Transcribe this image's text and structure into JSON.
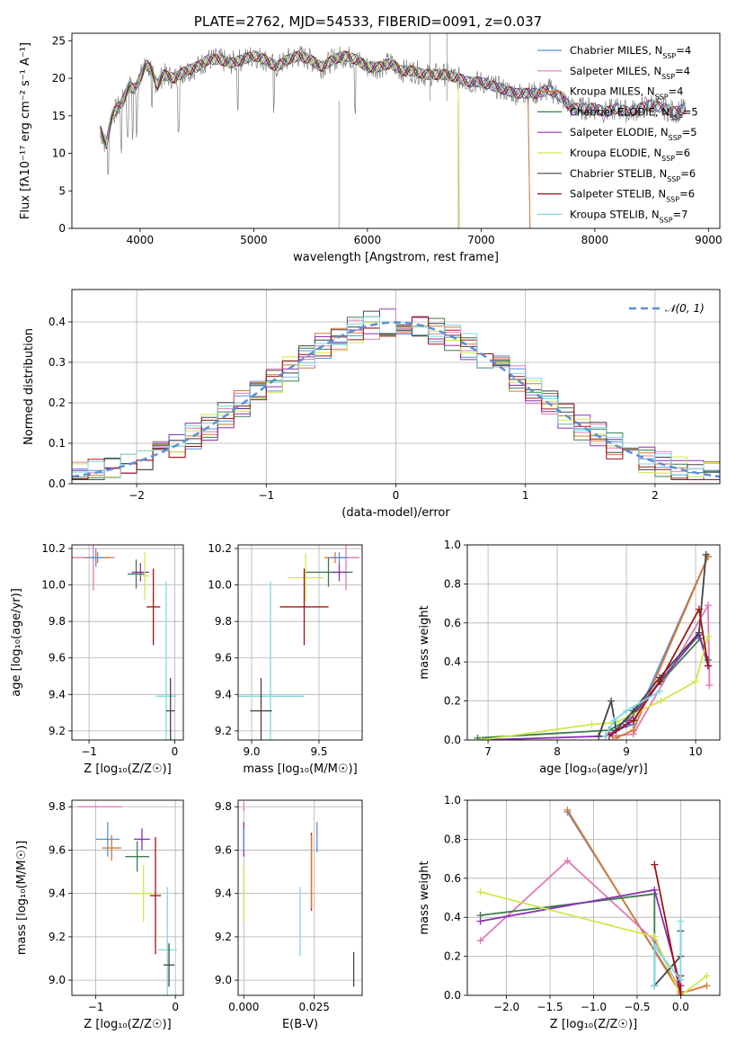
{
  "figure_title": "PLATE=2762, MJD=54533, FIBERID=0091, z=0.037",
  "colors": {
    "chabrier_miles": "#5b8fd6",
    "salpeter_miles": "#e07ab8",
    "kroupa_miles": "#d9782d",
    "chabrier_elodie": "#3b7d4a",
    "salpeter_elodie": "#8b2fb5",
    "kroupa_elodie": "#cfe84a",
    "chabrier_stelib": "#444444",
    "salpeter_stelib": "#a01414",
    "kroupa_stelib": "#7fd9df",
    "gaussian": "#5b8fd6"
  },
  "chart_data": [
    {
      "id": "spectrum",
      "type": "line",
      "title": "PLATE=2762, MJD=54533, FIBERID=0091, z=0.037",
      "xlabel": "wavelength [Angstrom, rest frame]",
      "ylabel": "Flux [fλ10⁻¹⁷ erg cm⁻² s⁻¹ A⁻¹]",
      "xlim": [
        3400,
        9100
      ],
      "ylim": [
        0,
        26
      ],
      "xticks": [
        4000,
        5000,
        6000,
        7000,
        8000,
        9000
      ],
      "yticks": [
        0,
        5,
        10,
        15,
        20,
        25
      ],
      "grid": false,
      "legend_position": "top-right",
      "legend": [
        "Chabrier MILES, N_SSP=4",
        "Salpeter MILES, N_SSP=4",
        "Kroupa MILES, N_SSP=4",
        "Chabrier ELODIE, N_SSP=5",
        "Salpeter ELODIE, N_SSP=5",
        "Kroupa ELODIE, N_SSP=6",
        "Chabrier STELIB, N_SSP=6",
        "Salpeter STELIB, N_SSP=6",
        "Kroupa STELIB, N_SSP=7"
      ],
      "observed_spectrum": {
        "x": [
          3650,
          3700,
          3750,
          3800,
          3850,
          3900,
          3950,
          4000,
          4050,
          4100,
          4150,
          4200,
          4300,
          4400,
          4500,
          4600,
          4700,
          4800,
          4900,
          5000,
          5100,
          5200,
          5300,
          5400,
          5500,
          5600,
          5700,
          5800,
          5900,
          6000,
          6100,
          6200,
          6300,
          6400,
          6500,
          6600,
          6700,
          6800,
          6900,
          7000,
          7100,
          7200,
          7300,
          7400,
          7500,
          7600,
          7700,
          7800,
          7900,
          8000,
          8100,
          8200,
          8300,
          8400,
          8500,
          8600,
          8700,
          8800
        ],
        "y": [
          13,
          11,
          15,
          16,
          17,
          19,
          18.5,
          20,
          22,
          21,
          19,
          20.5,
          20,
          21,
          21.5,
          22.5,
          22.5,
          22,
          22.5,
          23,
          22.5,
          21.5,
          22.5,
          23,
          22.5,
          21.5,
          22.5,
          23,
          22.5,
          21.5,
          21.5,
          22,
          21,
          21,
          20.5,
          20.5,
          20.5,
          20,
          19.5,
          19.5,
          19,
          18.5,
          18,
          18,
          18,
          18.5,
          17.5,
          16,
          16,
          16,
          15.5,
          16,
          15.5,
          16,
          16.5,
          16,
          15.5,
          16
        ]
      },
      "model_cutoff_wavelength": {
        "Kroupa MILES": 7420,
        "Chabrier MILES": 7420,
        "Kroupa ELODIE": 6800
      }
    },
    {
      "id": "residuals",
      "type": "line",
      "xlabel": "(data-model)/error",
      "ylabel": "Normed distribution",
      "xlim": [
        -2.5,
        2.5
      ],
      "ylim": [
        0,
        0.48
      ],
      "xticks": [
        -2,
        -1,
        0,
        1,
        2
      ],
      "yticks": [
        0.0,
        0.1,
        0.2,
        0.3,
        0.4
      ],
      "grid": true,
      "legend_position": "top-right",
      "legend": [
        "𝒩(0, 1)"
      ],
      "gaussian": {
        "mean": 0,
        "sigma": 1
      }
    },
    {
      "id": "age_vs_Z",
      "type": "scatter",
      "xlabel": "Z [log₁₀(Z/Z☉)]",
      "ylabel": "age  [log₁₀(age/yr)]",
      "xlim": [
        -1.2,
        0.1
      ],
      "ylim": [
        9.15,
        10.22
      ],
      "xticks": [
        -1,
        0
      ],
      "yticks": [
        9.2,
        9.4,
        9.6,
        9.8,
        10.0,
        10.2
      ],
      "grid": true,
      "points": [
        {
          "model": "Salpeter MILES",
          "x": -0.95,
          "y": 10.15,
          "xerr": 0.25,
          "yerr": 0.18
        },
        {
          "model": "Kroupa MILES",
          "x": -0.9,
          "y": 10.15,
          "xerr": 0.15,
          "yerr": 0.03
        },
        {
          "model": "Chabrier MILES",
          "x": -0.92,
          "y": 10.15,
          "xerr": 0.1,
          "yerr": 0.05
        },
        {
          "model": "Chabrier ELODIE",
          "x": -0.45,
          "y": 10.06,
          "xerr": 0.1,
          "yerr": 0.08
        },
        {
          "model": "Salpeter ELODIE",
          "x": -0.4,
          "y": 10.07,
          "xerr": 0.1,
          "yerr": 0.05
        },
        {
          "model": "Kroupa ELODIE",
          "x": -0.35,
          "y": 10.05,
          "xerr": 0.05,
          "yerr": 0.13
        },
        {
          "model": "Salpeter STELIB",
          "x": -0.25,
          "y": 9.88,
          "xerr": 0.08,
          "yerr": 0.21
        },
        {
          "model": "Kroupa STELIB",
          "x": -0.1,
          "y": 9.39,
          "xerr": 0.12,
          "yerr": 0.63
        },
        {
          "model": "Chabrier STELIB",
          "x": -0.05,
          "y": 9.31,
          "xerr": 0.05,
          "yerr": 0.18
        }
      ]
    },
    {
      "id": "age_vs_mass",
      "type": "scatter",
      "xlabel": "mass [log₁₀(M/M☉)]",
      "ylabel": "",
      "xlim": [
        8.9,
        9.82
      ],
      "ylim": [
        9.15,
        10.22
      ],
      "xticks": [
        9.0,
        9.5
      ],
      "yticks": [
        9.2,
        9.4,
        9.6,
        9.8,
        10.0,
        10.2
      ],
      "grid": true,
      "points": [
        {
          "model": "Salpeter MILES",
          "x": 9.7,
          "y": 10.15,
          "xerr": 0.1,
          "yerr": 0.18
        },
        {
          "model": "Kroupa MILES",
          "x": 9.62,
          "y": 10.15,
          "xerr": 0.08,
          "yerr": 0.03
        },
        {
          "model": "Chabrier MILES",
          "x": 9.65,
          "y": 10.15,
          "xerr": 0.07,
          "yerr": 0.03
        },
        {
          "model": "Chabrier ELODIE",
          "x": 9.57,
          "y": 10.07,
          "xerr": 0.18,
          "yerr": 0.08
        },
        {
          "model": "Salpeter ELODIE",
          "x": 9.65,
          "y": 10.07,
          "xerr": 0.05,
          "yerr": 0.05
        },
        {
          "model": "Kroupa ELODIE",
          "x": 9.4,
          "y": 10.04,
          "xerr": 0.13,
          "yerr": 0.13
        },
        {
          "model": "Salpeter STELIB",
          "x": 9.39,
          "y": 9.88,
          "xerr": 0.18,
          "yerr": 0.21
        },
        {
          "model": "Kroupa STELIB",
          "x": 9.14,
          "y": 9.39,
          "xerr": 0.25,
          "yerr": 0.63
        },
        {
          "model": "Chabrier STELIB",
          "x": 9.07,
          "y": 9.31,
          "xerr": 0.08,
          "yerr": 0.18
        }
      ]
    },
    {
      "id": "weight_vs_age",
      "type": "line",
      "xlabel": "age  [log₁₀(age/yr)]",
      "ylabel": "mass weight",
      "xlim": [
        6.7,
        10.35
      ],
      "ylim": [
        0,
        1.0
      ],
      "xticks": [
        7,
        8,
        9,
        10
      ],
      "yticks": [
        0.0,
        0.2,
        0.4,
        0.6,
        0.8,
        1.0
      ],
      "grid": true,
      "series": [
        {
          "model": "Chabrier MILES",
          "x": [
            8.85,
            9.1,
            10.18
          ],
          "y": [
            0.05,
            0.08,
            0.94
          ]
        },
        {
          "model": "Salpeter MILES",
          "x": [
            8.8,
            9.1,
            10.18,
            10.2
          ],
          "y": [
            0.02,
            0.03,
            0.69,
            0.28
          ]
        },
        {
          "model": "Kroupa MILES",
          "x": [
            8.85,
            9.1,
            10.18
          ],
          "y": [
            0.01,
            0.05,
            0.94
          ]
        },
        {
          "model": "Chabrier ELODIE",
          "x": [
            6.85,
            8.75,
            9.0,
            9.5,
            10.07,
            10.18
          ],
          "y": [
            0.01,
            0.05,
            0.1,
            0.3,
            0.52,
            0.41
          ]
        },
        {
          "model": "Salpeter ELODIE",
          "x": [
            6.9,
            8.7,
            9.0,
            9.48,
            10.05,
            10.18
          ],
          "y": [
            0.0,
            0.02,
            0.08,
            0.3,
            0.54,
            0.38
          ]
        },
        {
          "model": "Kroupa ELODIE",
          "x": [
            6.9,
            8.5,
            8.85,
            9.5,
            10.0,
            10.18
          ],
          "y": [
            0.0,
            0.08,
            0.09,
            0.2,
            0.3,
            0.53
          ]
        },
        {
          "model": "Chabrier STELIB",
          "x": [
            8.6,
            8.78,
            8.85,
            9.1,
            9.48,
            10.05,
            10.15
          ],
          "y": [
            0.02,
            0.2,
            0.05,
            0.15,
            0.32,
            0.55,
            0.95
          ]
        },
        {
          "model": "Salpeter STELIB",
          "x": [
            8.75,
            9.1,
            9.48,
            10.05,
            10.18
          ],
          "y": [
            0.02,
            0.1,
            0.3,
            0.67,
            0.38
          ]
        },
        {
          "model": "Kroupa STELIB",
          "x": [
            8.7,
            8.82,
            9.0,
            9.48
          ],
          "y": [
            0.02,
            0.1,
            0.15,
            0.25
          ]
        }
      ]
    },
    {
      "id": "mass_vs_Z",
      "type": "scatter",
      "xlabel": "Z [log₁₀(Z/Z☉)]",
      "ylabel": "mass [log₁₀(M/M☉)]",
      "xlim": [
        -1.3,
        0.1
      ],
      "ylim": [
        8.93,
        9.83
      ],
      "xticks": [
        -1,
        0
      ],
      "yticks": [
        9.0,
        9.2,
        9.4,
        9.6,
        9.8
      ],
      "grid": true,
      "points": [
        {
          "model": "Salpeter MILES",
          "x": -0.95,
          "y": 9.8,
          "xerr": 0.28,
          "yerr": 0.0
        },
        {
          "model": "Chabrier MILES",
          "x": -0.85,
          "y": 9.65,
          "xerr": 0.15,
          "yerr": 0.08
        },
        {
          "model": "Kroupa MILES",
          "x": -0.8,
          "y": 9.61,
          "xerr": 0.12,
          "yerr": 0.06
        },
        {
          "model": "Salpeter ELODIE",
          "x": -0.42,
          "y": 9.65,
          "xerr": 0.1,
          "yerr": 0.05
        },
        {
          "model": "Chabrier ELODIE",
          "x": -0.48,
          "y": 9.57,
          "xerr": 0.15,
          "yerr": 0.07
        },
        {
          "model": "Kroupa ELODIE",
          "x": -0.4,
          "y": 9.4,
          "xerr": 0.15,
          "yerr": 0.13
        },
        {
          "model": "Salpeter STELIB",
          "x": -0.25,
          "y": 9.39,
          "xerr": 0.07,
          "yerr": 0.27
        },
        {
          "model": "Kroupa STELIB",
          "x": -0.1,
          "y": 9.14,
          "xerr": 0.12,
          "yerr": 0.29
        },
        {
          "model": "Chabrier STELIB",
          "x": -0.08,
          "y": 9.07,
          "xerr": 0.07,
          "yerr": 0.1
        }
      ]
    },
    {
      "id": "mass_vs_EBV",
      "type": "scatter",
      "xlabel": "E(B-V)",
      "ylabel": "",
      "xlim": [
        -0.002,
        0.042
      ],
      "ylim": [
        8.93,
        9.83
      ],
      "xticks": [
        0.0,
        0.025
      ],
      "xtick_labels": [
        "0.000",
        "0.025"
      ],
      "yticks": [
        9.0,
        9.2,
        9.4,
        9.6,
        9.8
      ],
      "grid": true,
      "points": [
        {
          "model": "Salpeter MILES",
          "x": 0.0,
          "y": 9.8,
          "yerr": 0.02
        },
        {
          "model": "Salpeter ELODIE",
          "x": 0.0,
          "y": 9.65,
          "yerr": 0.08
        },
        {
          "model": "Kroupa ELODIE",
          "x": 0.0,
          "y": 9.4,
          "yerr": 0.13
        },
        {
          "model": "Chabrier MILES",
          "x": 0.0,
          "y": 9.65,
          "yerr": 0.05
        },
        {
          "model": "Kroupa STELIB",
          "x": 0.02,
          "y": 9.27,
          "yerr": 0.16
        },
        {
          "model": "Salpeter STELIB",
          "x": 0.024,
          "y": 9.5,
          "yerr": 0.18
        },
        {
          "model": "Kroupa MILES",
          "x": 0.024,
          "y": 9.5,
          "yerr": 0.17
        },
        {
          "model": "Chabrier MILES",
          "x": 0.026,
          "y": 9.66,
          "yerr": 0.07
        },
        {
          "model": "Chabrier STELIB",
          "x": 0.039,
          "y": 9.05,
          "yerr": 0.08
        }
      ]
    },
    {
      "id": "weight_vs_Z",
      "type": "line",
      "xlabel": "Z [log₁₀(Z/Z☉)]",
      "ylabel": "mass weight",
      "xlim": [
        -2.45,
        0.45
      ],
      "ylim": [
        0,
        1.0
      ],
      "xticks": [
        -2.0,
        -1.5,
        -1.0,
        -0.5,
        0.0
      ],
      "yticks": [
        0.0,
        0.2,
        0.4,
        0.6,
        0.8,
        1.0
      ],
      "grid": true,
      "series": [
        {
          "model": "Chabrier MILES",
          "x": [
            -1.3,
            0.0
          ],
          "y": [
            0.94,
            0.02
          ]
        },
        {
          "model": "Kroupa MILES",
          "x": [
            -1.3,
            0.0,
            0.3
          ],
          "y": [
            0.95,
            0.01,
            0.05
          ]
        },
        {
          "model": "Salpeter MILES",
          "x": [
            -2.3,
            -1.3,
            -0.3,
            0.0
          ],
          "y": [
            0.28,
            0.69,
            0.28,
            0.02
          ]
        },
        {
          "model": "Chabrier ELODIE",
          "x": [
            -2.3,
            -0.3,
            -0.3
          ],
          "y": [
            0.41,
            0.52,
            0.05
          ]
        },
        {
          "model": "Salpeter ELODIE",
          "x": [
            -2.3,
            -0.3,
            0.0
          ],
          "y": [
            0.38,
            0.54,
            0.05
          ]
        },
        {
          "model": "Kroupa ELODIE",
          "x": [
            -2.3,
            -0.3,
            0.0,
            0.3
          ],
          "y": [
            0.53,
            0.3,
            0.0,
            0.1
          ]
        },
        {
          "model": "Chabrier STELIB",
          "x": [
            -0.3,
            0.0,
            0.0
          ],
          "y": [
            0.05,
            0.2,
            0.33
          ]
        },
        {
          "model": "Salpeter STELIB",
          "x": [
            -0.3,
            0.0,
            0.0
          ],
          "y": [
            0.67,
            0.0,
            0.1
          ]
        },
        {
          "model": "Kroupa STELIB",
          "x": [
            -0.3,
            -0.3,
            0.0,
            0.0
          ],
          "y": [
            0.05,
            0.25,
            0.08,
            0.38
          ]
        }
      ]
    }
  ]
}
